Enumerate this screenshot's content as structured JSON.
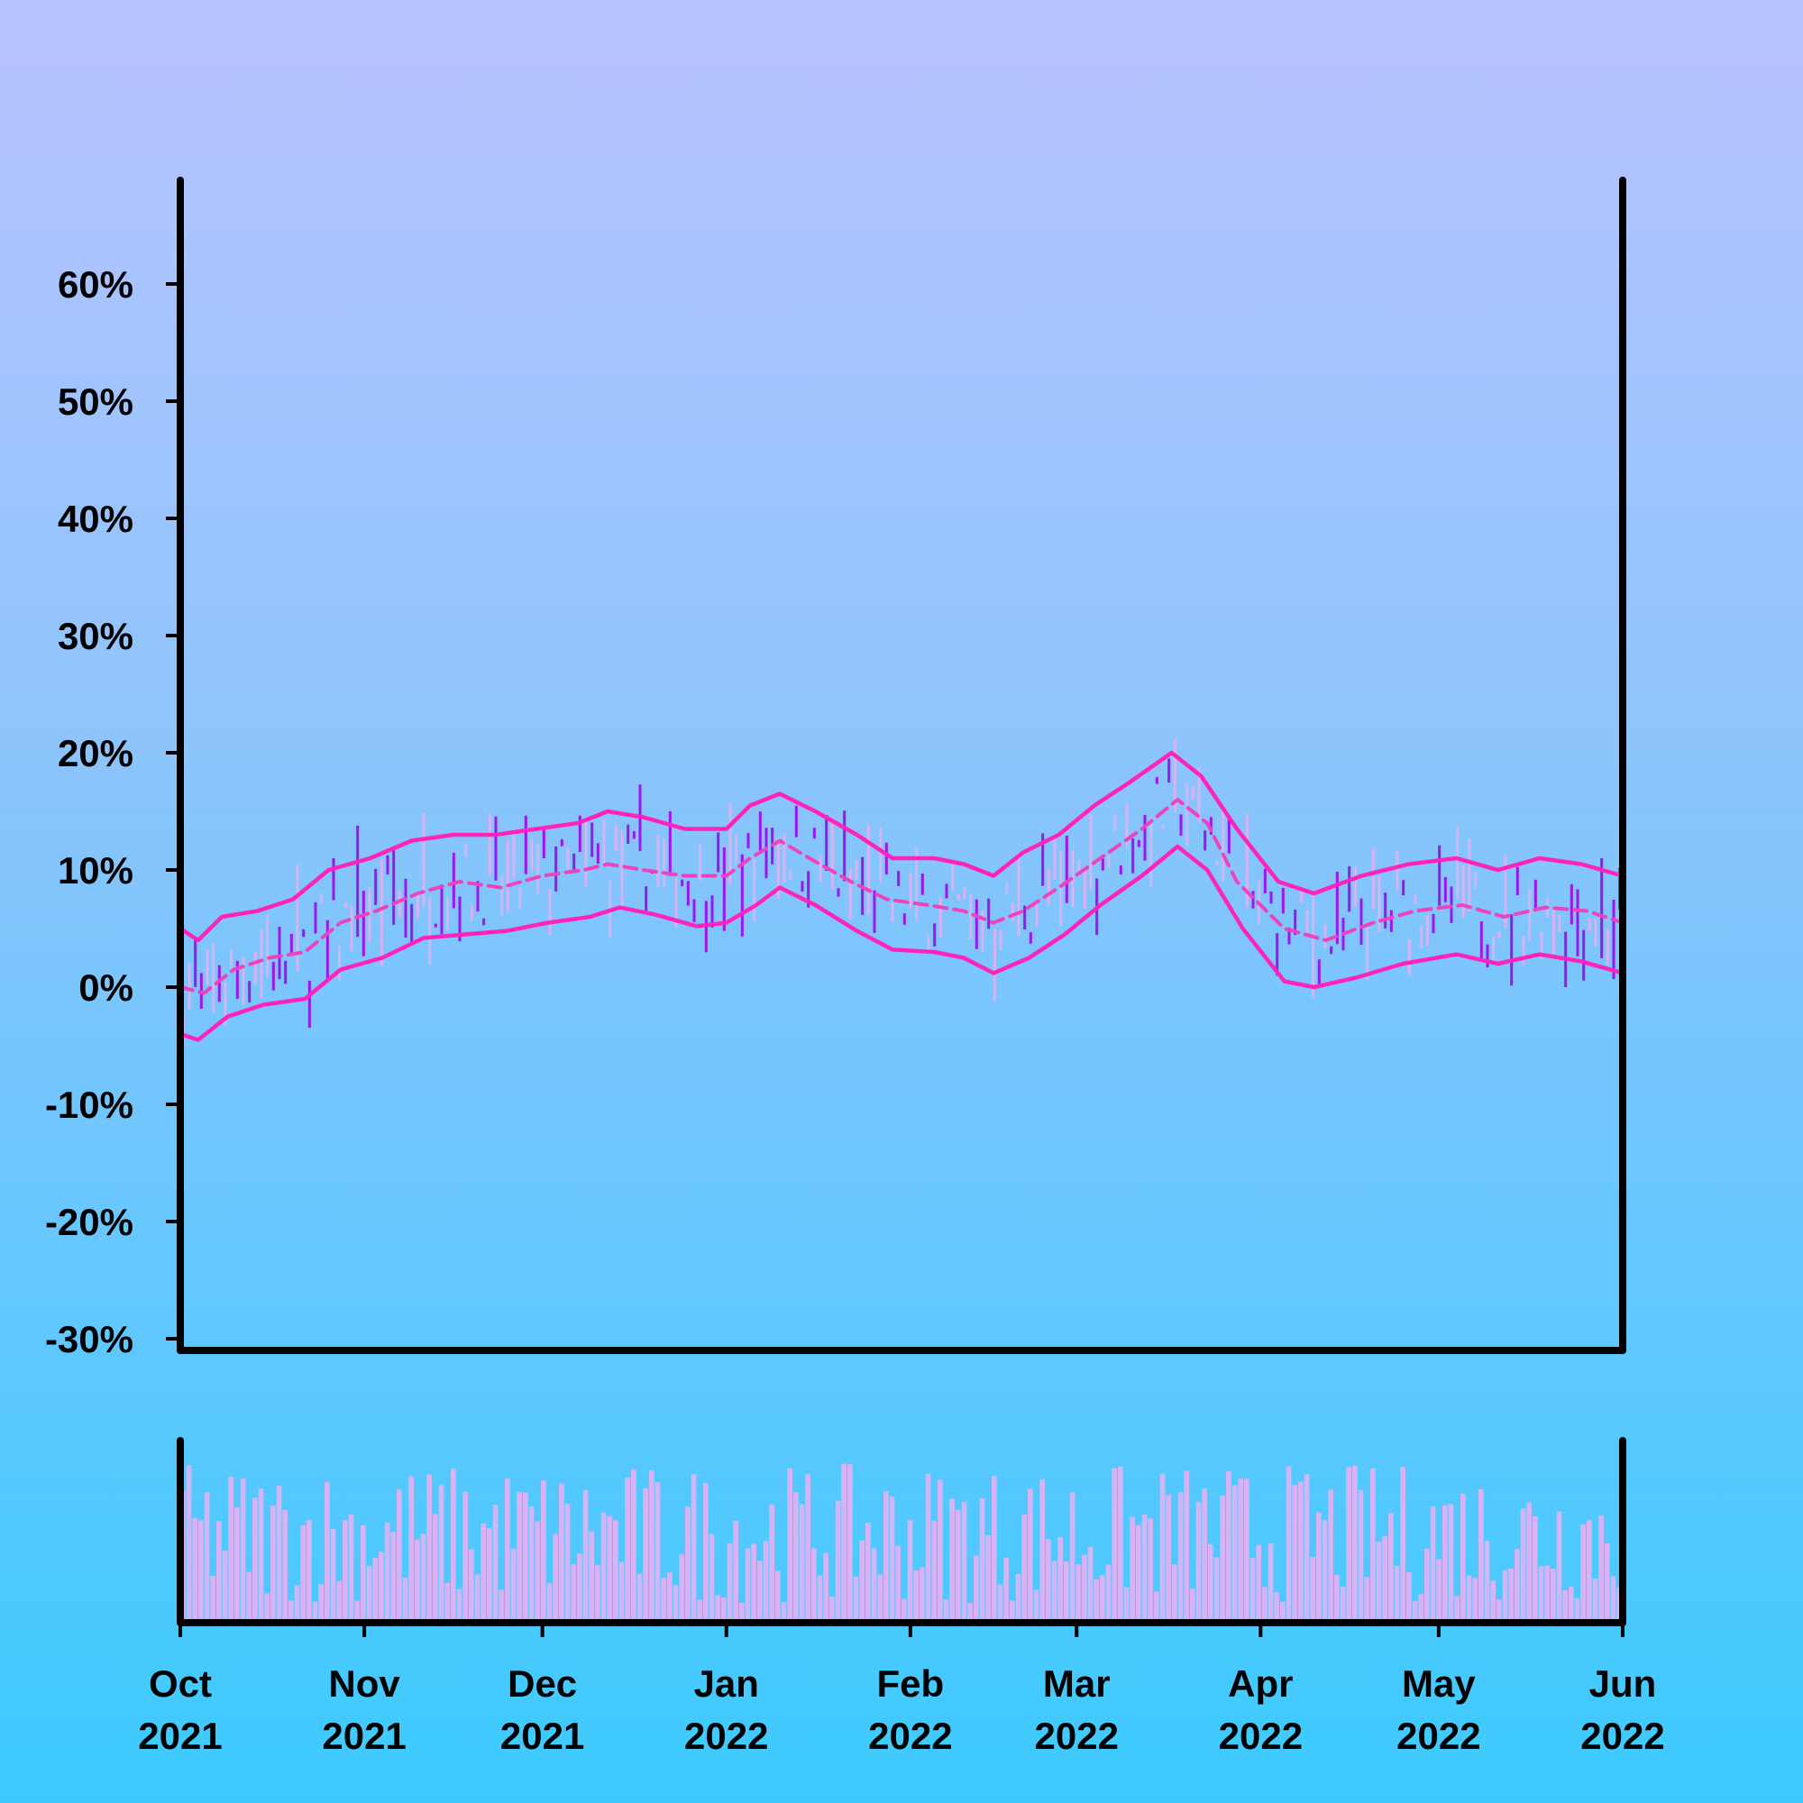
{
  "chart_data": {
    "type": "line",
    "title": "",
    "xlabel": "",
    "ylabel": "",
    "x_range": [
      "2021-10-01",
      "2022-06-01"
    ],
    "ylim": [
      -31,
      69
    ],
    "y_ticks": [
      "-30%",
      "-20%",
      "-10%",
      "0%",
      "10%",
      "20%",
      "30%",
      "40%",
      "50%",
      "60%"
    ],
    "y_tick_values": [
      -30,
      -20,
      -10,
      0,
      10,
      20,
      30,
      40,
      50,
      60
    ],
    "x_ticks": [
      {
        "month": "Oct",
        "year": "2021",
        "date": "2021-10-01"
      },
      {
        "month": "Nov",
        "year": "2021",
        "date": "2021-11-01"
      },
      {
        "month": "Dec",
        "year": "2021",
        "date": "2021-12-01"
      },
      {
        "month": "Jan",
        "year": "2022",
        "date": "2022-01-01"
      },
      {
        "month": "Feb",
        "year": "2022",
        "date": "2022-02-01"
      },
      {
        "month": "Mar",
        "year": "2022",
        "date": "2022-03-01"
      },
      {
        "month": "Apr",
        "year": "2022",
        "date": "2022-04-01"
      },
      {
        "month": "May",
        "year": "2022",
        "date": "2022-05-01"
      },
      {
        "month": "Jun",
        "year": "2022",
        "date": "2022-06-01"
      }
    ],
    "series": [
      {
        "role": "bollinger_middle",
        "style": "dashed",
        "color": "#ee44bb",
        "points": [
          [
            "2021-10-01",
            0
          ],
          [
            "2021-10-05",
            -0.5
          ],
          [
            "2021-10-10",
            1.5
          ],
          [
            "2021-10-16",
            2.5
          ],
          [
            "2021-10-22",
            3
          ],
          [
            "2021-10-28",
            5.5
          ],
          [
            "2021-11-03",
            6.5
          ],
          [
            "2021-11-10",
            8
          ],
          [
            "2021-11-17",
            9
          ],
          [
            "2021-11-24",
            8.5
          ],
          [
            "2021-12-01",
            9.5
          ],
          [
            "2021-12-08",
            10
          ],
          [
            "2021-12-12",
            10.5
          ],
          [
            "2021-12-18",
            10
          ],
          [
            "2021-12-25",
            9.5
          ],
          [
            "2022-01-01",
            9.5
          ],
          [
            "2022-01-05",
            11
          ],
          [
            "2022-01-10",
            12.5
          ],
          [
            "2022-01-15",
            11
          ],
          [
            "2022-01-22",
            9
          ],
          [
            "2022-01-28",
            7.5
          ],
          [
            "2022-02-04",
            7
          ],
          [
            "2022-02-10",
            6.5
          ],
          [
            "2022-02-15",
            5.5
          ],
          [
            "2022-02-20",
            6.5
          ],
          [
            "2022-02-26",
            8.5
          ],
          [
            "2022-03-05",
            11
          ],
          [
            "2022-03-12",
            13.5
          ],
          [
            "2022-03-18",
            16
          ],
          [
            "2022-03-23",
            14
          ],
          [
            "2022-03-28",
            9
          ],
          [
            "2022-04-05",
            5
          ],
          [
            "2022-04-12",
            4
          ],
          [
            "2022-04-20",
            5.5
          ],
          [
            "2022-04-27",
            6.5
          ],
          [
            "2022-05-05",
            7
          ],
          [
            "2022-05-12",
            6
          ],
          [
            "2022-05-19",
            6.8
          ],
          [
            "2022-05-26",
            6.5
          ],
          [
            "2022-06-01",
            5.5
          ]
        ]
      },
      {
        "role": "bollinger_upper",
        "style": "solid",
        "color": "#ff22bb",
        "points": [
          [
            "2021-10-01",
            5
          ],
          [
            "2021-10-04",
            4
          ],
          [
            "2021-10-08",
            6
          ],
          [
            "2021-10-14",
            6.5
          ],
          [
            "2021-10-20",
            7.5
          ],
          [
            "2021-10-26",
            10
          ],
          [
            "2021-11-02",
            11
          ],
          [
            "2021-11-09",
            12.5
          ],
          [
            "2021-11-16",
            13
          ],
          [
            "2021-11-23",
            13
          ],
          [
            "2021-11-30",
            13.5
          ],
          [
            "2021-12-07",
            14
          ],
          [
            "2021-12-12",
            15
          ],
          [
            "2021-12-18",
            14.5
          ],
          [
            "2021-12-25",
            13.5
          ],
          [
            "2022-01-01",
            13.5
          ],
          [
            "2022-01-05",
            15.5
          ],
          [
            "2022-01-10",
            16.5
          ],
          [
            "2022-01-16",
            15
          ],
          [
            "2022-01-23",
            13
          ],
          [
            "2022-01-29",
            11
          ],
          [
            "2022-02-05",
            11
          ],
          [
            "2022-02-10",
            10.5
          ],
          [
            "2022-02-15",
            9.5
          ],
          [
            "2022-02-20",
            11.5
          ],
          [
            "2022-02-26",
            13
          ],
          [
            "2022-03-04",
            15.5
          ],
          [
            "2022-03-10",
            17.5
          ],
          [
            "2022-03-17",
            20
          ],
          [
            "2022-03-22",
            18
          ],
          [
            "2022-03-28",
            13.5
          ],
          [
            "2022-04-04",
            9
          ],
          [
            "2022-04-10",
            8
          ],
          [
            "2022-04-18",
            9.5
          ],
          [
            "2022-04-26",
            10.5
          ],
          [
            "2022-05-04",
            11
          ],
          [
            "2022-05-11",
            10
          ],
          [
            "2022-05-18",
            11
          ],
          [
            "2022-05-25",
            10.5
          ],
          [
            "2022-06-01",
            9.5
          ]
        ]
      },
      {
        "role": "bollinger_lower",
        "style": "solid",
        "color": "#ff22bb",
        "points": [
          [
            "2021-10-01",
            -4
          ],
          [
            "2021-10-04",
            -4.5
          ],
          [
            "2021-10-09",
            -2.5
          ],
          [
            "2021-10-15",
            -1.5
          ],
          [
            "2021-10-22",
            -1
          ],
          [
            "2021-10-28",
            1.5
          ],
          [
            "2021-11-04",
            2.5
          ],
          [
            "2021-11-11",
            4.2
          ],
          [
            "2021-11-18",
            4.5
          ],
          [
            "2021-11-25",
            4.8
          ],
          [
            "2021-12-02",
            5.5
          ],
          [
            "2021-12-09",
            6
          ],
          [
            "2021-12-14",
            6.8
          ],
          [
            "2021-12-20",
            6.2
          ],
          [
            "2021-12-27",
            5.2
          ],
          [
            "2022-01-01",
            5.5
          ],
          [
            "2022-01-06",
            7
          ],
          [
            "2022-01-10",
            8.5
          ],
          [
            "2022-01-16",
            7
          ],
          [
            "2022-01-23",
            4.8
          ],
          [
            "2022-01-29",
            3.2
          ],
          [
            "2022-02-05",
            3
          ],
          [
            "2022-02-10",
            2.5
          ],
          [
            "2022-02-15",
            1.2
          ],
          [
            "2022-02-21",
            2.5
          ],
          [
            "2022-02-27",
            4.5
          ],
          [
            "2022-03-05",
            7
          ],
          [
            "2022-03-12",
            9.5
          ],
          [
            "2022-03-18",
            12
          ],
          [
            "2022-03-23",
            10
          ],
          [
            "2022-03-29",
            5
          ],
          [
            "2022-04-05",
            0.5
          ],
          [
            "2022-04-10",
            0
          ],
          [
            "2022-04-17",
            0.8
          ],
          [
            "2022-04-25",
            2
          ],
          [
            "2022-05-04",
            2.8
          ],
          [
            "2022-05-11",
            2
          ],
          [
            "2022-05-18",
            2.8
          ],
          [
            "2022-05-25",
            2.2
          ],
          [
            "2022-06-01",
            1.2
          ]
        ]
      }
    ],
    "candles": {
      "description_free": true,
      "colors": {
        "up": "#d7b3f5",
        "down": "#9b16f0"
      },
      "count": 240
    },
    "volume": {
      "color": "#d7b3f5",
      "ylim": [
        0,
        1
      ]
    },
    "grid": false,
    "legend": "none"
  }
}
